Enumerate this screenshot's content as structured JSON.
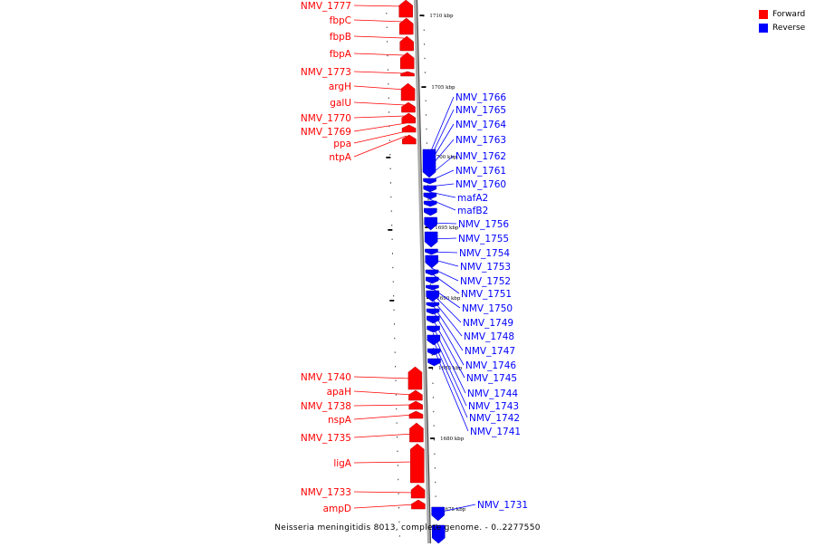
{
  "legend": {
    "forward": {
      "label": "Forward",
      "color": "#ff0000"
    },
    "reverse": {
      "label": "Reverse",
      "color": "#0000ff"
    }
  },
  "caption": "Neisseria meningitidis 8013, complete genome. - 0..2277550",
  "scale": {
    "major_ticks": [
      "1710 kbp",
      "1705 kbp",
      "1700 kbp",
      "1695 kbp",
      "1690 kbp",
      "1685 kbp",
      "1680 kbp",
      "1675 kbp"
    ]
  },
  "forward_genes": [
    "NMV_1777",
    "fbpC",
    "fbpB",
    "fbpA",
    "NMV_1773",
    "argH",
    "galU",
    "NMV_1770",
    "NMV_1769",
    "ppa",
    "ntpA",
    "NMV_1740",
    "apaH",
    "NMV_1738",
    "nspA",
    "NMV_1735",
    "ligA",
    "NMV_1733",
    "ampD"
  ],
  "reverse_genes": [
    "NMV_1766",
    "NMV_1765",
    "NMV_1764",
    "NMV_1763",
    "NMV_1762",
    "NMV_1761",
    "NMV_1760",
    "mafA2",
    "mafB2",
    "NMV_1756",
    "NMV_1755",
    "NMV_1754",
    "NMV_1753",
    "NMV_1752",
    "NMV_1751",
    "NMV_1750",
    "NMV_1749",
    "NMV_1748",
    "NMV_1747",
    "NMV_1746",
    "NMV_1745",
    "NMV_1744",
    "NMV_1743",
    "NMV_1742",
    "NMV_1741",
    "NMV_1731"
  ]
}
